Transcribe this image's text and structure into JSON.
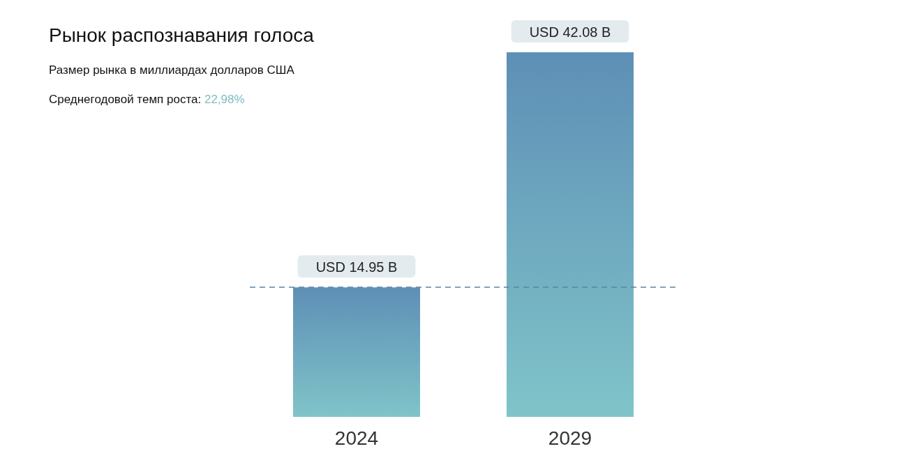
{
  "chart_data": {
    "type": "bar",
    "title": "Рынок распознавания голоса",
    "subtitle": "Размер рынка в миллиардах долларов США",
    "annotations": [
      "Среднегодовой темп роста: 22,98%"
    ],
    "categories": [
      "2024",
      "2029"
    ],
    "values": [
      14.95,
      42.08
    ],
    "color": "#5e8fb6",
    "value_labels": [
      "USD 14.95 B",
      "USD 42.08 B"
    ],
    "ref_lines": [
      {
        "axis": "y",
        "value": 14.95,
        "color": "#5b84a3",
        "line_style": "dashed"
      }
    ]
  }
}
